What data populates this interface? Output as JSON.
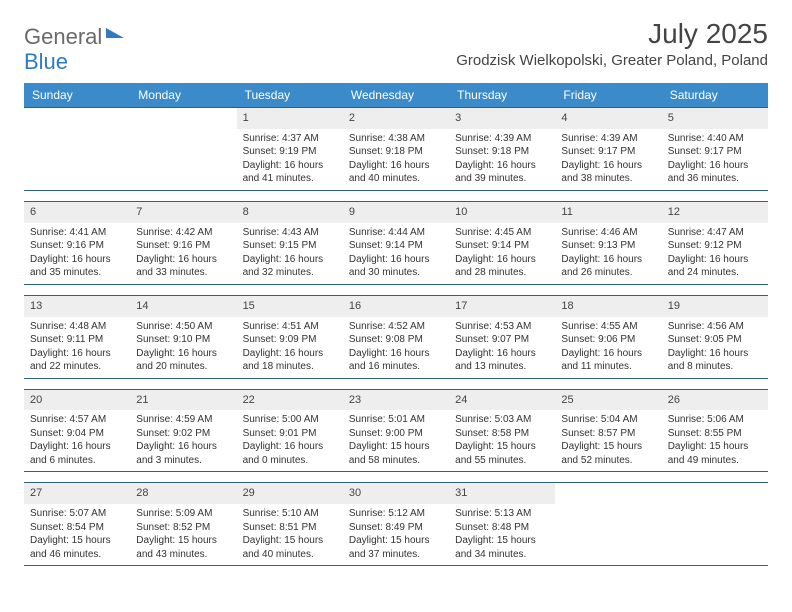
{
  "logo": {
    "part1": "General",
    "part2": "Blue"
  },
  "title": "July 2025",
  "location": "Grodzisk Wielkopolski, Greater Poland, Poland",
  "colors": {
    "header_bg": "#3b8bca",
    "header_text": "#ffffff",
    "daynum_bg": "#eeeeee",
    "week_border": "#2e5f8a",
    "body_text": "#333333"
  },
  "weekdays": [
    "Sunday",
    "Monday",
    "Tuesday",
    "Wednesday",
    "Thursday",
    "Friday",
    "Saturday"
  ],
  "weeks": [
    [
      {
        "n": "",
        "sunrise": "",
        "sunset": "",
        "daylight": ""
      },
      {
        "n": "",
        "sunrise": "",
        "sunset": "",
        "daylight": ""
      },
      {
        "n": "1",
        "sunrise": "Sunrise: 4:37 AM",
        "sunset": "Sunset: 9:19 PM",
        "daylight": "Daylight: 16 hours and 41 minutes."
      },
      {
        "n": "2",
        "sunrise": "Sunrise: 4:38 AM",
        "sunset": "Sunset: 9:18 PM",
        "daylight": "Daylight: 16 hours and 40 minutes."
      },
      {
        "n": "3",
        "sunrise": "Sunrise: 4:39 AM",
        "sunset": "Sunset: 9:18 PM",
        "daylight": "Daylight: 16 hours and 39 minutes."
      },
      {
        "n": "4",
        "sunrise": "Sunrise: 4:39 AM",
        "sunset": "Sunset: 9:17 PM",
        "daylight": "Daylight: 16 hours and 38 minutes."
      },
      {
        "n": "5",
        "sunrise": "Sunrise: 4:40 AM",
        "sunset": "Sunset: 9:17 PM",
        "daylight": "Daylight: 16 hours and 36 minutes."
      }
    ],
    [
      {
        "n": "6",
        "sunrise": "Sunrise: 4:41 AM",
        "sunset": "Sunset: 9:16 PM",
        "daylight": "Daylight: 16 hours and 35 minutes."
      },
      {
        "n": "7",
        "sunrise": "Sunrise: 4:42 AM",
        "sunset": "Sunset: 9:16 PM",
        "daylight": "Daylight: 16 hours and 33 minutes."
      },
      {
        "n": "8",
        "sunrise": "Sunrise: 4:43 AM",
        "sunset": "Sunset: 9:15 PM",
        "daylight": "Daylight: 16 hours and 32 minutes."
      },
      {
        "n": "9",
        "sunrise": "Sunrise: 4:44 AM",
        "sunset": "Sunset: 9:14 PM",
        "daylight": "Daylight: 16 hours and 30 minutes."
      },
      {
        "n": "10",
        "sunrise": "Sunrise: 4:45 AM",
        "sunset": "Sunset: 9:14 PM",
        "daylight": "Daylight: 16 hours and 28 minutes."
      },
      {
        "n": "11",
        "sunrise": "Sunrise: 4:46 AM",
        "sunset": "Sunset: 9:13 PM",
        "daylight": "Daylight: 16 hours and 26 minutes."
      },
      {
        "n": "12",
        "sunrise": "Sunrise: 4:47 AM",
        "sunset": "Sunset: 9:12 PM",
        "daylight": "Daylight: 16 hours and 24 minutes."
      }
    ],
    [
      {
        "n": "13",
        "sunrise": "Sunrise: 4:48 AM",
        "sunset": "Sunset: 9:11 PM",
        "daylight": "Daylight: 16 hours and 22 minutes."
      },
      {
        "n": "14",
        "sunrise": "Sunrise: 4:50 AM",
        "sunset": "Sunset: 9:10 PM",
        "daylight": "Daylight: 16 hours and 20 minutes."
      },
      {
        "n": "15",
        "sunrise": "Sunrise: 4:51 AM",
        "sunset": "Sunset: 9:09 PM",
        "daylight": "Daylight: 16 hours and 18 minutes."
      },
      {
        "n": "16",
        "sunrise": "Sunrise: 4:52 AM",
        "sunset": "Sunset: 9:08 PM",
        "daylight": "Daylight: 16 hours and 16 minutes."
      },
      {
        "n": "17",
        "sunrise": "Sunrise: 4:53 AM",
        "sunset": "Sunset: 9:07 PM",
        "daylight": "Daylight: 16 hours and 13 minutes."
      },
      {
        "n": "18",
        "sunrise": "Sunrise: 4:55 AM",
        "sunset": "Sunset: 9:06 PM",
        "daylight": "Daylight: 16 hours and 11 minutes."
      },
      {
        "n": "19",
        "sunrise": "Sunrise: 4:56 AM",
        "sunset": "Sunset: 9:05 PM",
        "daylight": "Daylight: 16 hours and 8 minutes."
      }
    ],
    [
      {
        "n": "20",
        "sunrise": "Sunrise: 4:57 AM",
        "sunset": "Sunset: 9:04 PM",
        "daylight": "Daylight: 16 hours and 6 minutes."
      },
      {
        "n": "21",
        "sunrise": "Sunrise: 4:59 AM",
        "sunset": "Sunset: 9:02 PM",
        "daylight": "Daylight: 16 hours and 3 minutes."
      },
      {
        "n": "22",
        "sunrise": "Sunrise: 5:00 AM",
        "sunset": "Sunset: 9:01 PM",
        "daylight": "Daylight: 16 hours and 0 minutes."
      },
      {
        "n": "23",
        "sunrise": "Sunrise: 5:01 AM",
        "sunset": "Sunset: 9:00 PM",
        "daylight": "Daylight: 15 hours and 58 minutes."
      },
      {
        "n": "24",
        "sunrise": "Sunrise: 5:03 AM",
        "sunset": "Sunset: 8:58 PM",
        "daylight": "Daylight: 15 hours and 55 minutes."
      },
      {
        "n": "25",
        "sunrise": "Sunrise: 5:04 AM",
        "sunset": "Sunset: 8:57 PM",
        "daylight": "Daylight: 15 hours and 52 minutes."
      },
      {
        "n": "26",
        "sunrise": "Sunrise: 5:06 AM",
        "sunset": "Sunset: 8:55 PM",
        "daylight": "Daylight: 15 hours and 49 minutes."
      }
    ],
    [
      {
        "n": "27",
        "sunrise": "Sunrise: 5:07 AM",
        "sunset": "Sunset: 8:54 PM",
        "daylight": "Daylight: 15 hours and 46 minutes."
      },
      {
        "n": "28",
        "sunrise": "Sunrise: 5:09 AM",
        "sunset": "Sunset: 8:52 PM",
        "daylight": "Daylight: 15 hours and 43 minutes."
      },
      {
        "n": "29",
        "sunrise": "Sunrise: 5:10 AM",
        "sunset": "Sunset: 8:51 PM",
        "daylight": "Daylight: 15 hours and 40 minutes."
      },
      {
        "n": "30",
        "sunrise": "Sunrise: 5:12 AM",
        "sunset": "Sunset: 8:49 PM",
        "daylight": "Daylight: 15 hours and 37 minutes."
      },
      {
        "n": "31",
        "sunrise": "Sunrise: 5:13 AM",
        "sunset": "Sunset: 8:48 PM",
        "daylight": "Daylight: 15 hours and 34 minutes."
      },
      {
        "n": "",
        "sunrise": "",
        "sunset": "",
        "daylight": ""
      },
      {
        "n": "",
        "sunrise": "",
        "sunset": "",
        "daylight": ""
      }
    ]
  ]
}
